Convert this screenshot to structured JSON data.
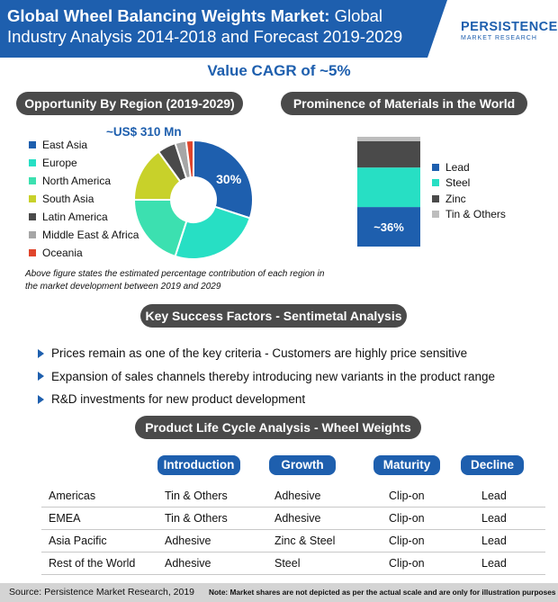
{
  "header": {
    "title_bold": "Global Wheel Balancing Weights Market:",
    "title_rest": "Global",
    "title_line2": "Industry Analysis 2014-2018 and Forecast 2019-2029",
    "logo_main": "PERSISTENCE",
    "logo_sub": "MARKET RESEARCH"
  },
  "cagr": "Value CAGR of ~5%",
  "sections": {
    "region": "Opportunity By Region (2019-2029)",
    "materials": "Prominence of Materials in the World",
    "factors": "Key Success Factors - Sentimetal Analysis",
    "lifecycle": "Product Life Cycle Analysis - Wheel Weights"
  },
  "market_value": "~US$ 310 Mn",
  "note": "Above figure states the estimated percentage contribution of each region in the market development between 2019 and 2029",
  "chart_data": [
    {
      "type": "pie",
      "categories": [
        "East Asia",
        "Europe",
        "North America",
        "South Asia",
        "Latin America",
        "Middle East & Africa",
        "Oceania"
      ],
      "values": [
        30,
        25,
        20,
        15,
        5,
        3,
        2
      ],
      "colors": [
        "#1e5fae",
        "#27dfc4",
        "#3ce0b0",
        "#c8d12a",
        "#4a4a4a",
        "#a6a6a6",
        "#e0452c"
      ],
      "data_labels": [
        "30%",
        "",
        "",
        "",
        "",
        "",
        ""
      ],
      "legend_placement": "left"
    },
    {
      "type": "bar",
      "stacked": true,
      "categories": [
        ""
      ],
      "series": [
        {
          "name": "Lead",
          "values": [
            36
          ],
          "color": "#1e5fae"
        },
        {
          "name": "Steel",
          "values": [
            36
          ],
          "color": "#27dfc4"
        },
        {
          "name": "Zinc",
          "values": [
            24
          ],
          "color": "#4a4a4a"
        },
        {
          "name": "Tin & Others",
          "values": [
            4
          ],
          "color": "#bdbdbd"
        }
      ],
      "data_labels": [
        "~36%",
        "",
        "",
        ""
      ],
      "legend_placement": "right"
    }
  ],
  "factors": [
    "Prices remain as one of the key criteria - Customers are highly price sensitive",
    "Expansion of sales channels thereby introducing new variants in the product range",
    "R&D investments for new product development"
  ],
  "lifecycle": {
    "stages": [
      "Introduction",
      "Growth",
      "Maturity",
      "Decline"
    ],
    "rows": [
      {
        "region": "Americas",
        "cells": [
          "Tin & Others",
          "Adhesive",
          "Clip-on",
          "Lead"
        ]
      },
      {
        "region": "EMEA",
        "cells": [
          "Tin & Others",
          "Adhesive",
          "Clip-on",
          "Lead"
        ]
      },
      {
        "region": "Asia Pacific",
        "cells": [
          "Adhesive",
          "Zinc & Steel",
          "Clip-on",
          "Lead"
        ]
      },
      {
        "region": "Rest of the World",
        "cells": [
          "Adhesive",
          "Steel",
          "Clip-on",
          "Lead"
        ]
      }
    ]
  },
  "footer": {
    "source": "Source: Persistence Market Research, 2019",
    "disclaimer": "Note: Market shares are not depicted as per the actual scale and are only for illustration purposes"
  }
}
